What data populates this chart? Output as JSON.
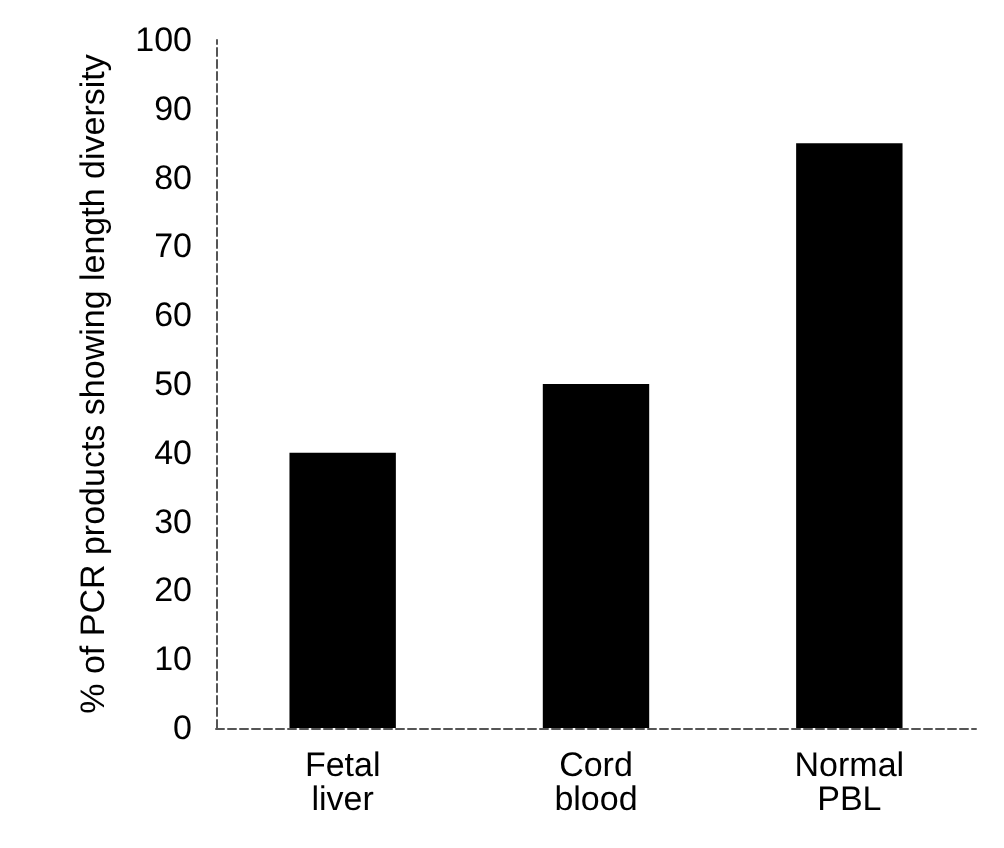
{
  "chart_data": {
    "type": "bar",
    "ylabel": "% of PCR products showing length diversity",
    "categories": [
      "Fetal\nliver",
      "Cord\nblood",
      "Normal\nPBL"
    ],
    "values": [
      40,
      50,
      85
    ],
    "color": "#000000",
    "ylim": [
      0,
      100
    ],
    "yticks": [
      0,
      10,
      20,
      30,
      40,
      50,
      60,
      70,
      80,
      90,
      100
    ],
    "grid": false
  }
}
